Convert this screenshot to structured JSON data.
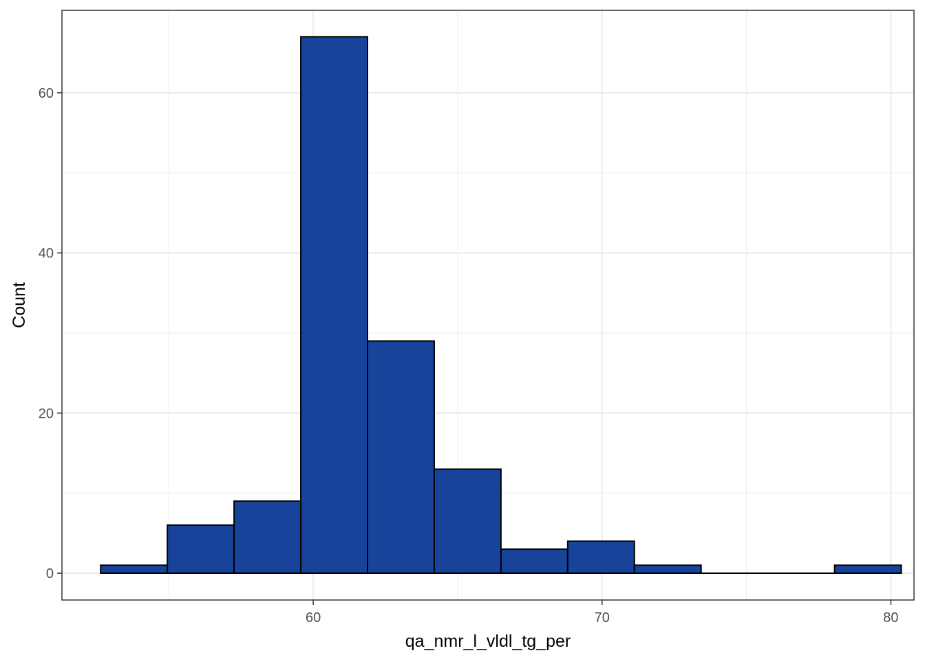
{
  "chart_data": {
    "type": "histogram",
    "title": "",
    "xlabel": "qa_nmr_l_vldl_tg_per",
    "ylabel": "Count",
    "xlim": [
      51.3,
      80.8
    ],
    "ylim": [
      -3.35,
      70.3
    ],
    "x_ticks": [
      60,
      70,
      80
    ],
    "x_minor_ticks": [
      55,
      65,
      75
    ],
    "y_ticks": [
      0,
      20,
      40,
      60
    ],
    "y_minor_ticks": [
      10,
      30,
      50
    ],
    "x_tick_labels": [
      "60",
      "70",
      "80"
    ],
    "y_tick_labels": [
      "0",
      "20",
      "40",
      "60"
    ],
    "bin_width": 2.31,
    "bins": [
      {
        "x0": 52.64,
        "x1": 54.95,
        "count": 1
      },
      {
        "x0": 54.95,
        "x1": 57.26,
        "count": 6
      },
      {
        "x0": 57.26,
        "x1": 59.57,
        "count": 9
      },
      {
        "x0": 59.57,
        "x1": 61.88,
        "count": 67
      },
      {
        "x0": 61.88,
        "x1": 64.19,
        "count": 29
      },
      {
        "x0": 64.19,
        "x1": 66.5,
        "count": 13
      },
      {
        "x0": 66.5,
        "x1": 68.81,
        "count": 3
      },
      {
        "x0": 68.81,
        "x1": 71.12,
        "count": 4
      },
      {
        "x0": 71.12,
        "x1": 73.43,
        "count": 1
      },
      {
        "x0": 73.43,
        "x1": 75.74,
        "count": 0
      },
      {
        "x0": 75.74,
        "x1": 78.05,
        "count": 0
      },
      {
        "x0": 78.05,
        "x1": 80.36,
        "count": 1
      }
    ],
    "grid": true,
    "legend": "none",
    "colors": {
      "bar_fill": "#17449A",
      "bar_stroke": "#000000",
      "grid": "#EBEBEB",
      "panel_border": "#333333"
    }
  }
}
